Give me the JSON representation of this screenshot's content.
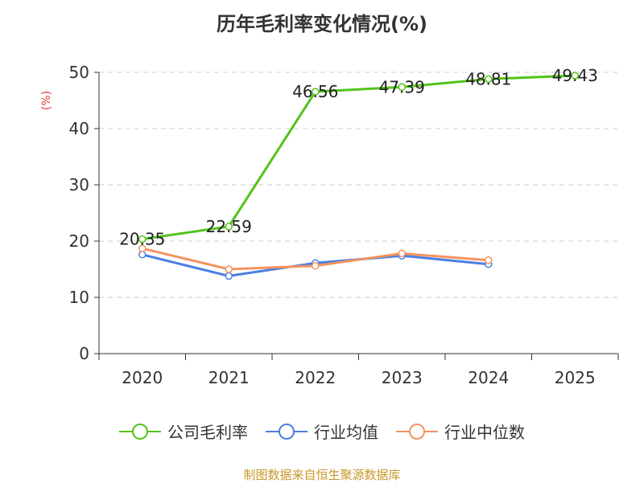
{
  "chart_data": {
    "type": "line",
    "title": "历年毛利率变化情况(%)",
    "ylabel": "(%)",
    "xlabel": "",
    "categories": [
      "2020",
      "2021",
      "2022",
      "2023",
      "2024",
      "2025"
    ],
    "ylim": [
      0,
      50
    ],
    "yticks": [
      0,
      10,
      20,
      30,
      40,
      50
    ],
    "grid": true,
    "legend_position": "bottom",
    "series": [
      {
        "name": "公司毛利率",
        "color": "#52c41a",
        "values": [
          20.35,
          22.59,
          46.56,
          47.39,
          48.81,
          49.43
        ],
        "labels": [
          "20.35",
          "22.59",
          "46.56",
          "47.39",
          "48.81",
          "49.43"
        ]
      },
      {
        "name": "行业均值",
        "color": "#4a7fe0",
        "values": [
          17.6,
          13.8,
          16.1,
          17.4,
          15.9,
          null
        ]
      },
      {
        "name": "行业中位数",
        "color": "#f4935f",
        "values": [
          18.7,
          15.0,
          15.6,
          17.8,
          16.6,
          null
        ]
      }
    ]
  },
  "source": "制图数据来自恒生聚源数据库"
}
